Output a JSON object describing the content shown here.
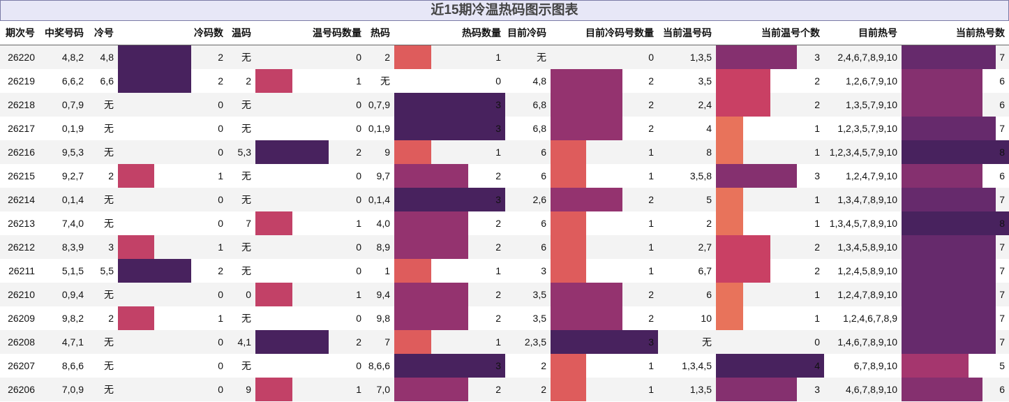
{
  "title": "近15期冷温热码图示图表",
  "headers": [
    "期次号",
    "中奖号码",
    "冷号",
    "冷码数",
    "温码",
    "温号码数量",
    "热码",
    "热码数量",
    "目前冷码",
    "目前冷码号数量",
    "当前温号码",
    "当前温号个数",
    "目前热号",
    "当前热号数"
  ],
  "max_counts": {
    "cold_count": 3,
    "warm_count": 3,
    "hot_count": 3,
    "cur_cold_count": 3,
    "cur_warm_count": 4,
    "cur_hot_count": 8
  },
  "colors": {
    "c1": "#de5c5c",
    "c1b": "#c24167",
    "c2": "#94336f",
    "c3": "#48225e",
    "w1": "#e8735b",
    "w2": "#c94064",
    "w3": "#85306f",
    "w4": "#48225e",
    "h5": "#a5366e",
    "h6": "#85306f",
    "h7": "#662a6c",
    "h8": "#48225e"
  },
  "rows": [
    {
      "period": "26220",
      "winning": "4,8,2",
      "cold": "4,8",
      "cold_count": "2",
      "warm": "无",
      "warm_count": "0",
      "hot": "2",
      "hot_count": "1",
      "cur_cold": "无",
      "cur_cold_count": "0",
      "cur_warm": "1,3,5",
      "cur_warm_count": "3",
      "cur_hot": "2,4,6,7,8,9,10",
      "cur_hot_count": "7"
    },
    {
      "period": "26219",
      "winning": "6,6,2",
      "cold": "6,6",
      "cold_count": "2",
      "warm": "2",
      "warm_count": "1",
      "hot": "无",
      "hot_count": "0",
      "cur_cold": "4,8",
      "cur_cold_count": "2",
      "cur_warm": "3,5",
      "cur_warm_count": "2",
      "cur_hot": "1,2,6,7,9,10",
      "cur_hot_count": "6"
    },
    {
      "period": "26218",
      "winning": "0,7,9",
      "cold": "无",
      "cold_count": "0",
      "warm": "无",
      "warm_count": "0",
      "hot": "0,7,9",
      "hot_count": "3",
      "cur_cold": "6,8",
      "cur_cold_count": "2",
      "cur_warm": "2,4",
      "cur_warm_count": "2",
      "cur_hot": "1,3,5,7,9,10",
      "cur_hot_count": "6"
    },
    {
      "period": "26217",
      "winning": "0,1,9",
      "cold": "无",
      "cold_count": "0",
      "warm": "无",
      "warm_count": "0",
      "hot": "0,1,9",
      "hot_count": "3",
      "cur_cold": "6,8",
      "cur_cold_count": "2",
      "cur_warm": "4",
      "cur_warm_count": "1",
      "cur_hot": "1,2,3,5,7,9,10",
      "cur_hot_count": "7"
    },
    {
      "period": "26216",
      "winning": "9,5,3",
      "cold": "无",
      "cold_count": "0",
      "warm": "5,3",
      "warm_count": "2",
      "hot": "9",
      "hot_count": "1",
      "cur_cold": "6",
      "cur_cold_count": "1",
      "cur_warm": "8",
      "cur_warm_count": "1",
      "cur_hot": "1,2,3,4,5,7,9,10",
      "cur_hot_count": "8"
    },
    {
      "period": "26215",
      "winning": "9,2,7",
      "cold": "2",
      "cold_count": "1",
      "warm": "无",
      "warm_count": "0",
      "hot": "9,7",
      "hot_count": "2",
      "cur_cold": "6",
      "cur_cold_count": "1",
      "cur_warm": "3,5,8",
      "cur_warm_count": "3",
      "cur_hot": "1,2,4,7,9,10",
      "cur_hot_count": "6"
    },
    {
      "period": "26214",
      "winning": "0,1,4",
      "cold": "无",
      "cold_count": "0",
      "warm": "无",
      "warm_count": "0",
      "hot": "0,1,4",
      "hot_count": "3",
      "cur_cold": "2,6",
      "cur_cold_count": "2",
      "cur_warm": "5",
      "cur_warm_count": "1",
      "cur_hot": "1,3,4,7,8,9,10",
      "cur_hot_count": "7"
    },
    {
      "period": "26213",
      "winning": "7,4,0",
      "cold": "无",
      "cold_count": "0",
      "warm": "7",
      "warm_count": "1",
      "hot": "4,0",
      "hot_count": "2",
      "cur_cold": "6",
      "cur_cold_count": "1",
      "cur_warm": "2",
      "cur_warm_count": "1",
      "cur_hot": "1,3,4,5,7,8,9,10",
      "cur_hot_count": "8"
    },
    {
      "period": "26212",
      "winning": "8,3,9",
      "cold": "3",
      "cold_count": "1",
      "warm": "无",
      "warm_count": "0",
      "hot": "8,9",
      "hot_count": "2",
      "cur_cold": "6",
      "cur_cold_count": "1",
      "cur_warm": "2,7",
      "cur_warm_count": "2",
      "cur_hot": "1,3,4,5,8,9,10",
      "cur_hot_count": "7"
    },
    {
      "period": "26211",
      "winning": "5,1,5",
      "cold": "5,5",
      "cold_count": "2",
      "warm": "无",
      "warm_count": "0",
      "hot": "1",
      "hot_count": "1",
      "cur_cold": "3",
      "cur_cold_count": "1",
      "cur_warm": "6,7",
      "cur_warm_count": "2",
      "cur_hot": "1,2,4,5,8,9,10",
      "cur_hot_count": "7"
    },
    {
      "period": "26210",
      "winning": "0,9,4",
      "cold": "无",
      "cold_count": "0",
      "warm": "0",
      "warm_count": "1",
      "hot": "9,4",
      "hot_count": "2",
      "cur_cold": "3,5",
      "cur_cold_count": "2",
      "cur_warm": "6",
      "cur_warm_count": "1",
      "cur_hot": "1,2,4,7,8,9,10",
      "cur_hot_count": "7"
    },
    {
      "period": "26209",
      "winning": "9,8,2",
      "cold": "2",
      "cold_count": "1",
      "warm": "无",
      "warm_count": "0",
      "hot": "9,8",
      "hot_count": "2",
      "cur_cold": "3,5",
      "cur_cold_count": "2",
      "cur_warm": "10",
      "cur_warm_count": "1",
      "cur_hot": "1,2,4,6,7,8,9",
      "cur_hot_count": "7"
    },
    {
      "period": "26208",
      "winning": "4,7,1",
      "cold": "无",
      "cold_count": "0",
      "warm": "4,1",
      "warm_count": "2",
      "hot": "7",
      "hot_count": "1",
      "cur_cold": "2,3,5",
      "cur_cold_count": "3",
      "cur_warm": "无",
      "cur_warm_count": "0",
      "cur_hot": "1,4,6,7,8,9,10",
      "cur_hot_count": "7"
    },
    {
      "period": "26207",
      "winning": "8,6,6",
      "cold": "无",
      "cold_count": "0",
      "warm": "无",
      "warm_count": "0",
      "hot": "8,6,6",
      "hot_count": "3",
      "cur_cold": "2",
      "cur_cold_count": "1",
      "cur_warm": "1,3,4,5",
      "cur_warm_count": "4",
      "cur_hot": "6,7,8,9,10",
      "cur_hot_count": "5"
    },
    {
      "period": "26206",
      "winning": "7,0,9",
      "cold": "无",
      "cold_count": "0",
      "warm": "9",
      "warm_count": "1",
      "hot": "7,0",
      "hot_count": "2",
      "cur_cold": "2",
      "cur_cold_count": "1",
      "cur_warm": "1,3,5",
      "cur_warm_count": "3",
      "cur_hot": "4,6,7,8,9,10",
      "cur_hot_count": "6"
    }
  ]
}
